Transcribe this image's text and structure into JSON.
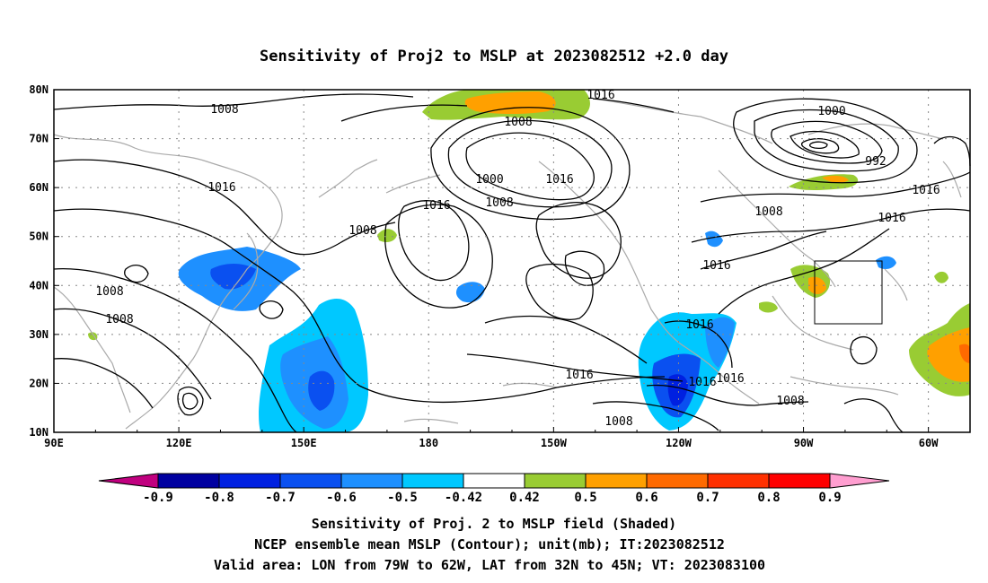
{
  "title": "Sensitivity of Proj2 to MSLP at 2023082512 +2.0 day",
  "map": {
    "lon_labels": [
      "90E",
      "120E",
      "150E",
      "180",
      "150W",
      "120W",
      "90W",
      "60W"
    ],
    "lat_labels": [
      "80N",
      "70N",
      "60N",
      "50N",
      "40N",
      "30N",
      "20N",
      "10N"
    ],
    "lon_range": [
      90,
      310
    ],
    "lat_range": [
      10,
      80
    ],
    "grid": "dotted",
    "contour_labels": [
      "1008",
      "1016",
      "1000",
      "1008",
      "1016",
      "1016",
      "1008",
      "1016",
      "1008",
      "1008",
      "1008",
      "1016",
      "1008",
      "1000",
      "992",
      "1016",
      "1008",
      "1016",
      "1016",
      "1016",
      "1016",
      "1016",
      "1008",
      "1008",
      "1008"
    ],
    "valid_box": {
      "lon_w": 79,
      "lon_e": 62,
      "lat_s": 32,
      "lat_n": 45
    }
  },
  "colorbar": {
    "levels": [
      "-0.9",
      "-0.8",
      "-0.7",
      "-0.6",
      "-0.5",
      "-0.42",
      "0.42",
      "0.5",
      "0.6",
      "0.7",
      "0.8",
      "0.9"
    ],
    "colors": [
      "#c0007f",
      "#0000a0",
      "#0020e0",
      "#0a50f0",
      "#1e90ff",
      "#00c8ff",
      "#ffffff",
      "#99cc33",
      "#ffa000",
      "#ff6a00",
      "#ff3000",
      "#ff0000",
      "#ff9ed0"
    ]
  },
  "footer": {
    "line1": "Sensitivity of Proj. 2 to MSLP field (Shaded)",
    "line2": "NCEP ensemble mean MSLP (Contour); unit(mb); IT:2023082512",
    "line3": "Valid area: LON from 79W to 62W, LAT from 32N to 45N; VT: 2023083100"
  }
}
